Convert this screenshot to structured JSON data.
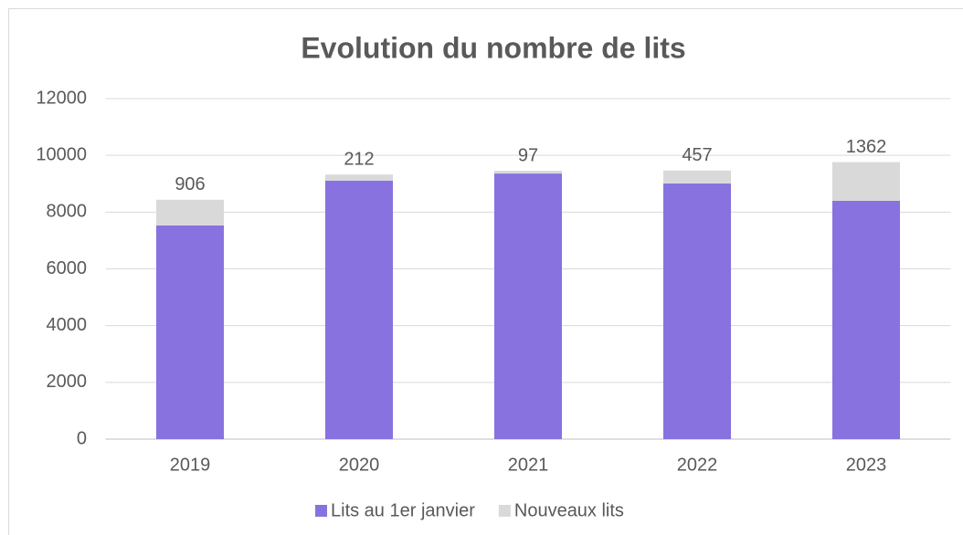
{
  "chart_data": {
    "type": "stacked_bar",
    "title": "Evolution du nombre de lits",
    "categories": [
      "2019",
      "2020",
      "2021",
      "2022",
      "2023"
    ],
    "series": [
      {
        "name": "Lits au 1er janvier",
        "color": "#8872e0",
        "values": [
          7530,
          9110,
          9360,
          9010,
          8400
        ],
        "data_labels": false
      },
      {
        "name": "Nouveaux lits",
        "color": "#d9d9d9",
        "values": [
          906,
          212,
          97,
          457,
          1362
        ],
        "data_labels": true
      }
    ],
    "ylim": [
      0,
      12000
    ],
    "yticks": [
      0,
      2000,
      4000,
      6000,
      8000,
      10000,
      12000
    ],
    "grid": true,
    "legend": "bottom"
  }
}
